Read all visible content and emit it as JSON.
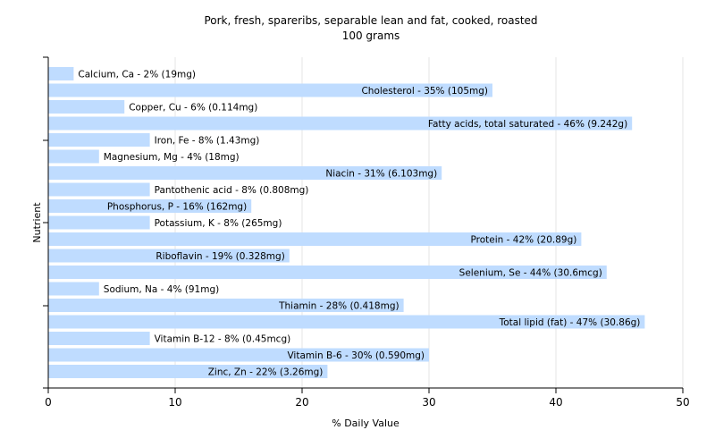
{
  "chart_data": {
    "type": "bar",
    "orientation": "horizontal",
    "title": "Pork, fresh, spareribs, separable lean and fat, cooked, roasted",
    "subtitle": "100 grams",
    "xlabel": "% Daily Value",
    "ylabel": "Nutrient",
    "xlim": [
      0,
      50
    ],
    "xticks": [
      "0",
      "10",
      "20",
      "30",
      "40",
      "50"
    ],
    "grid": true,
    "bar_color": "#bfdcff",
    "categories": [
      "Calcium, Ca",
      "Cholesterol",
      "Copper, Cu",
      "Fatty acids, total saturated",
      "Iron, Fe",
      "Magnesium, Mg",
      "Niacin",
      "Pantothenic acid",
      "Phosphorus, P",
      "Potassium, K",
      "Protein",
      "Riboflavin",
      "Selenium, Se",
      "Sodium, Na",
      "Thiamin",
      "Total lipid (fat)",
      "Vitamin B-12",
      "Vitamin B-6",
      "Zinc, Zn"
    ],
    "values": [
      2,
      35,
      6,
      46,
      8,
      4,
      31,
      8,
      16,
      8,
      42,
      19,
      44,
      4,
      28,
      47,
      8,
      30,
      22
    ],
    "labels": [
      "Calcium, Ca - 2% (19mg)",
      "Cholesterol - 35% (105mg)",
      "Copper, Cu - 6% (0.114mg)",
      "Fatty acids, total saturated - 46% (9.242g)",
      "Iron, Fe - 8% (1.43mg)",
      "Magnesium, Mg - 4% (18mg)",
      "Niacin - 31% (6.103mg)",
      "Pantothenic acid - 8% (0.808mg)",
      "Phosphorus, P - 16% (162mg)",
      "Potassium, K - 8% (265mg)",
      "Protein - 42% (20.89g)",
      "Riboflavin - 19% (0.328mg)",
      "Selenium, Se - 44% (30.6mcg)",
      "Sodium, Na - 4% (91mg)",
      "Thiamin - 28% (0.418mg)",
      "Total lipid (fat) - 47% (30.86g)",
      "Vitamin B-12 - 8% (0.45mcg)",
      "Vitamin B-6 - 30% (0.590mg)",
      "Zinc, Zn - 22% (3.26mg)"
    ]
  }
}
